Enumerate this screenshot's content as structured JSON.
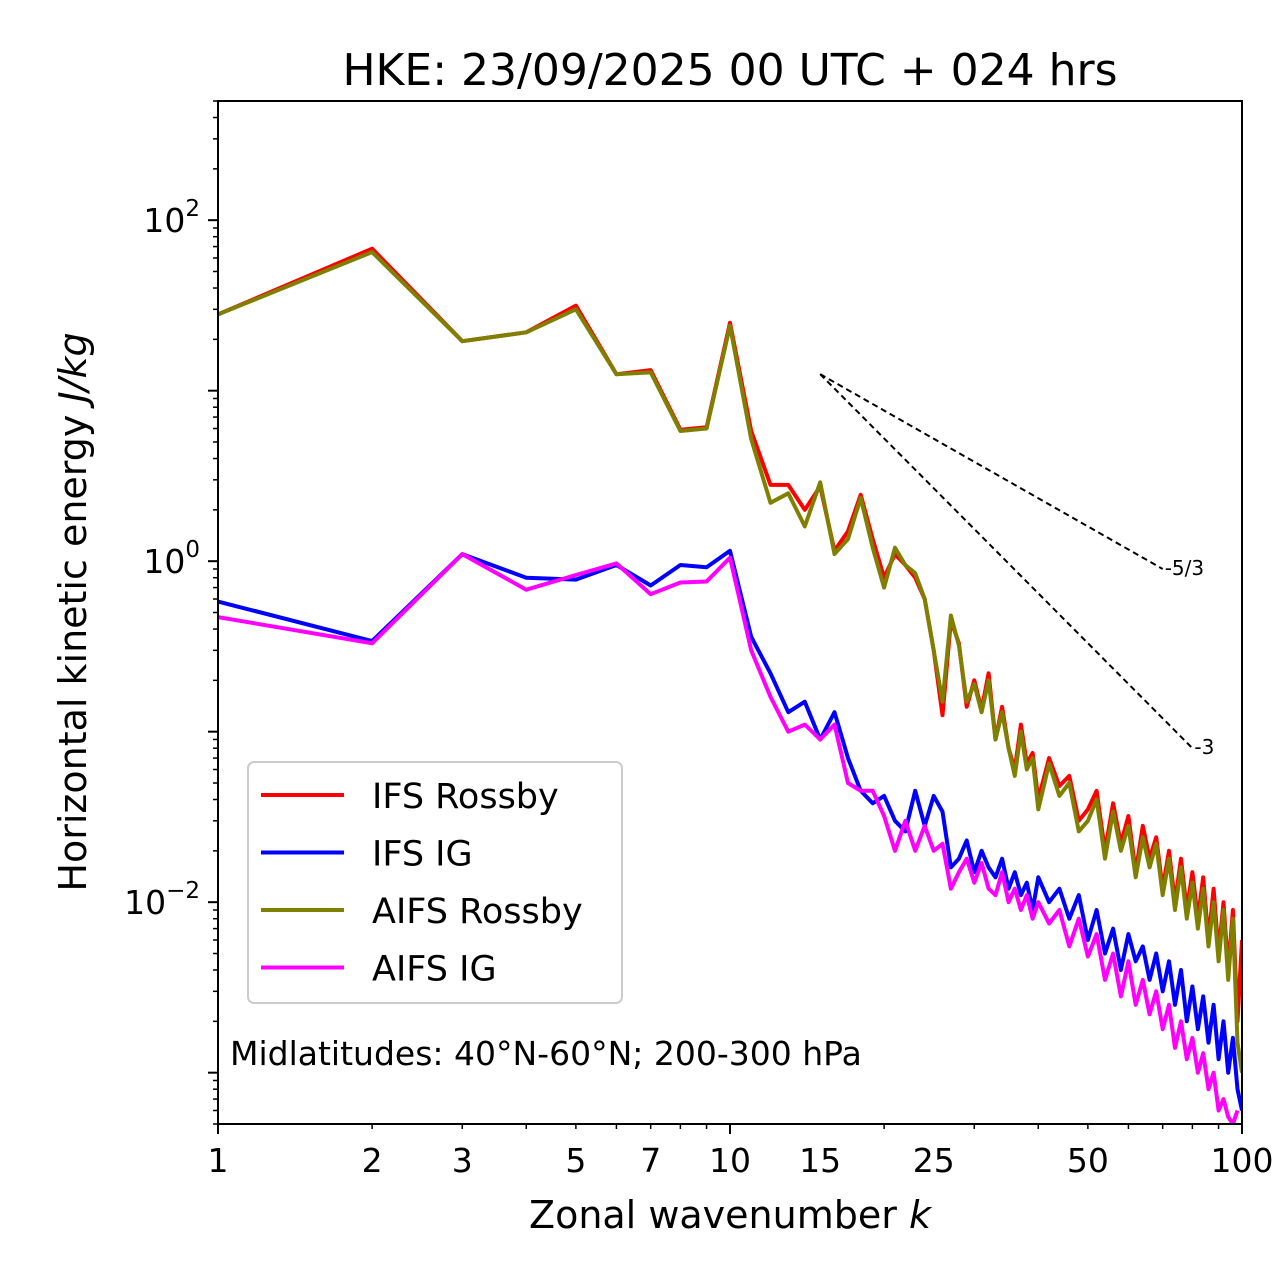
{
  "chart_data": {
    "type": "line",
    "title": "HKE: 23/09/2025 00 UTC + 024 hrs",
    "xlabel": "Zonal wavenumber",
    "xlabel_var": "k",
    "ylabel": "Horizontal kinetic energy",
    "ylabel_unit": "J/kg",
    "xscale": "log",
    "yscale": "log",
    "xlim": [
      1,
      100
    ],
    "ylim": [
      0.0005,
      500
    ],
    "xticks": [
      {
        "value": 1,
        "label": "1"
      },
      {
        "value": 2,
        "label": "2"
      },
      {
        "value": 3,
        "label": "3"
      },
      {
        "value": 5,
        "label": "5"
      },
      {
        "value": 7,
        "label": "7"
      },
      {
        "value": 10,
        "label": "10"
      },
      {
        "value": 15,
        "label": "15"
      },
      {
        "value": 25,
        "label": "25"
      },
      {
        "value": 50,
        "label": "50"
      },
      {
        "value": 100,
        "label": "100"
      }
    ],
    "yticks": [
      {
        "value": 0.01,
        "base": "10",
        "exp": "−2"
      },
      {
        "value": 1,
        "base": "10",
        "exp": "0"
      },
      {
        "value": 100,
        "base": "10",
        "exp": "2"
      }
    ],
    "annotation": "Midlatitudes: 40°N-60°N; 200-300 hPa",
    "legend_position": "lower-left",
    "series": [
      {
        "name": "IFS Rossby",
        "color": "#ff0000",
        "x": [
          1,
          2,
          3,
          4,
          5,
          6,
          7,
          8,
          9,
          10,
          11,
          12,
          13,
          14,
          15,
          16,
          17,
          18,
          19,
          20,
          21,
          22,
          23,
          24,
          25,
          26,
          27,
          28,
          29,
          30,
          31,
          32,
          33,
          34,
          35,
          36,
          37,
          38,
          39,
          40,
          42,
          44,
          46,
          48,
          50,
          52,
          54,
          56,
          58,
          60,
          62,
          64,
          66,
          68,
          70,
          72,
          74,
          76,
          78,
          80,
          82,
          84,
          86,
          88,
          90,
          92,
          94,
          96,
          98,
          100
        ],
        "y": [
          28,
          68,
          19.5,
          22,
          31.5,
          12.5,
          13.2,
          5.9,
          6.1,
          25,
          5.8,
          2.8,
          2.8,
          2,
          2.75,
          1.15,
          1.5,
          2.45,
          1.35,
          0.8,
          1.1,
          0.95,
          0.8,
          0.6,
          0.3,
          0.125,
          0.45,
          0.33,
          0.14,
          0.2,
          0.135,
          0.22,
          0.09,
          0.14,
          0.08,
          0.06,
          0.11,
          0.065,
          0.075,
          0.04,
          0.07,
          0.048,
          0.055,
          0.03,
          0.035,
          0.045,
          0.02,
          0.038,
          0.022,
          0.032,
          0.015,
          0.028,
          0.018,
          0.024,
          0.012,
          0.02,
          0.01,
          0.018,
          0.009,
          0.015,
          0.008,
          0.014,
          0.006,
          0.012,
          0.005,
          0.01,
          0.004,
          0.009,
          0.002,
          0.006
        ]
      },
      {
        "name": "IFS IG",
        "color": "#0000ff",
        "x": [
          1,
          2,
          3,
          4,
          5,
          6,
          7,
          8,
          9,
          10,
          11,
          12,
          13,
          14,
          15,
          16,
          17,
          18,
          19,
          20,
          21,
          22,
          23,
          24,
          25,
          26,
          27,
          28,
          29,
          30,
          31,
          32,
          33,
          34,
          35,
          36,
          37,
          38,
          39,
          40,
          42,
          44,
          46,
          48,
          50,
          52,
          54,
          56,
          58,
          60,
          62,
          64,
          66,
          68,
          70,
          72,
          74,
          76,
          78,
          80,
          82,
          84,
          86,
          88,
          90,
          92,
          94,
          96,
          98,
          100
        ],
        "y": [
          0.58,
          0.34,
          1.1,
          0.8,
          0.78,
          0.95,
          0.72,
          0.95,
          0.92,
          1.15,
          0.36,
          0.22,
          0.13,
          0.15,
          0.09,
          0.13,
          0.07,
          0.045,
          0.038,
          0.042,
          0.03,
          0.026,
          0.045,
          0.028,
          0.042,
          0.034,
          0.016,
          0.018,
          0.023,
          0.015,
          0.02,
          0.016,
          0.014,
          0.018,
          0.012,
          0.015,
          0.011,
          0.013,
          0.009,
          0.014,
          0.01,
          0.012,
          0.008,
          0.011,
          0.006,
          0.009,
          0.005,
          0.007,
          0.004,
          0.0065,
          0.0045,
          0.0055,
          0.0035,
          0.005,
          0.003,
          0.0045,
          0.0025,
          0.004,
          0.002,
          0.0032,
          0.0018,
          0.0028,
          0.0015,
          0.0025,
          0.0012,
          0.002,
          0.001,
          0.0016,
          0.0008,
          0.0006
        ]
      },
      {
        "name": "AIFS Rossby",
        "color": "#808000",
        "x": [
          1,
          2,
          3,
          4,
          5,
          6,
          7,
          8,
          9,
          10,
          11,
          12,
          13,
          14,
          15,
          16,
          17,
          18,
          19,
          20,
          21,
          22,
          23,
          24,
          25,
          26,
          27,
          28,
          29,
          30,
          31,
          32,
          33,
          34,
          35,
          36,
          37,
          38,
          39,
          40,
          42,
          44,
          46,
          48,
          50,
          52,
          54,
          56,
          58,
          60,
          62,
          64,
          66,
          68,
          70,
          72,
          74,
          76,
          78,
          80,
          82,
          84,
          86,
          88,
          90,
          92,
          94,
          96,
          98,
          100
        ],
        "y": [
          28,
          65,
          19.5,
          22,
          30,
          12.5,
          12.8,
          5.8,
          6,
          24,
          5.2,
          2.2,
          2.5,
          1.6,
          2.9,
          1.1,
          1.35,
          2.35,
          1.2,
          0.7,
          1.2,
          0.95,
          0.85,
          0.6,
          0.3,
          0.15,
          0.48,
          0.32,
          0.15,
          0.19,
          0.13,
          0.2,
          0.09,
          0.13,
          0.08,
          0.055,
          0.1,
          0.06,
          0.07,
          0.035,
          0.065,
          0.042,
          0.05,
          0.026,
          0.03,
          0.04,
          0.018,
          0.034,
          0.02,
          0.028,
          0.014,
          0.024,
          0.016,
          0.022,
          0.011,
          0.018,
          0.009,
          0.016,
          0.008,
          0.013,
          0.007,
          0.012,
          0.0055,
          0.01,
          0.0045,
          0.009,
          0.0035,
          0.008,
          0.0015,
          0.001
        ]
      },
      {
        "name": "AIFS IG",
        "color": "#ff00ff",
        "x": [
          1,
          2,
          3,
          4,
          5,
          6,
          7,
          8,
          9,
          10,
          11,
          12,
          13,
          14,
          15,
          16,
          17,
          18,
          19,
          20,
          21,
          22,
          23,
          24,
          25,
          26,
          27,
          28,
          29,
          30,
          31,
          32,
          33,
          34,
          35,
          36,
          37,
          38,
          39,
          40,
          42,
          44,
          46,
          48,
          50,
          52,
          54,
          56,
          58,
          60,
          62,
          64,
          66,
          68,
          70,
          72,
          74,
          76,
          78,
          80,
          82,
          84,
          86,
          88,
          90,
          92,
          94,
          96,
          98
        ],
        "y": [
          0.47,
          0.33,
          1.1,
          0.68,
          0.83,
          0.97,
          0.64,
          0.75,
          0.76,
          1.05,
          0.3,
          0.16,
          0.1,
          0.11,
          0.09,
          0.11,
          0.05,
          0.045,
          0.045,
          0.032,
          0.02,
          0.03,
          0.02,
          0.028,
          0.02,
          0.022,
          0.012,
          0.015,
          0.018,
          0.013,
          0.017,
          0.012,
          0.011,
          0.015,
          0.01,
          0.012,
          0.009,
          0.011,
          0.008,
          0.01,
          0.0075,
          0.009,
          0.0055,
          0.008,
          0.0048,
          0.0065,
          0.0035,
          0.005,
          0.0028,
          0.0045,
          0.0025,
          0.0035,
          0.0022,
          0.003,
          0.0018,
          0.0025,
          0.0014,
          0.002,
          0.0012,
          0.0016,
          0.001,
          0.0013,
          0.0008,
          0.001,
          0.0006,
          0.0007,
          0.00055,
          0.0005,
          0.0006
        ]
      }
    ],
    "reference_slopes": [
      {
        "label": "-5/3",
        "x": [
          15,
          70
        ],
        "y": [
          12.5,
          0.9
        ]
      },
      {
        "label": "-3",
        "x": [
          15,
          80
        ],
        "y": [
          12.5,
          0.08
        ]
      }
    ]
  }
}
